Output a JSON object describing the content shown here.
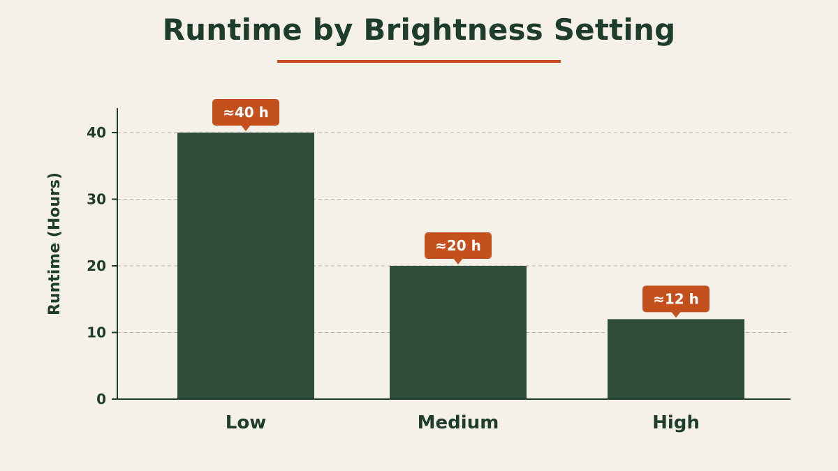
{
  "chart_data": {
    "type": "bar",
    "title": "Runtime by Brightness Setting",
    "xlabel": "",
    "ylabel": "Runtime (Hours)",
    "categories": [
      "Low",
      "Medium",
      "High"
    ],
    "values": [
      40,
      20,
      12
    ],
    "data_labels": [
      "≈40 h",
      "≈20 h",
      "≈12 h"
    ],
    "ylim": [
      0,
      44
    ],
    "yticks": [
      0,
      10,
      20,
      30,
      40
    ],
    "grid": true,
    "legend": "none",
    "colors": {
      "background": "#f5f1e8",
      "bar": "#2e4d3a",
      "accent": "#c4501e",
      "text": "#1f3d2c",
      "grid": "#b8b2a6"
    }
  }
}
